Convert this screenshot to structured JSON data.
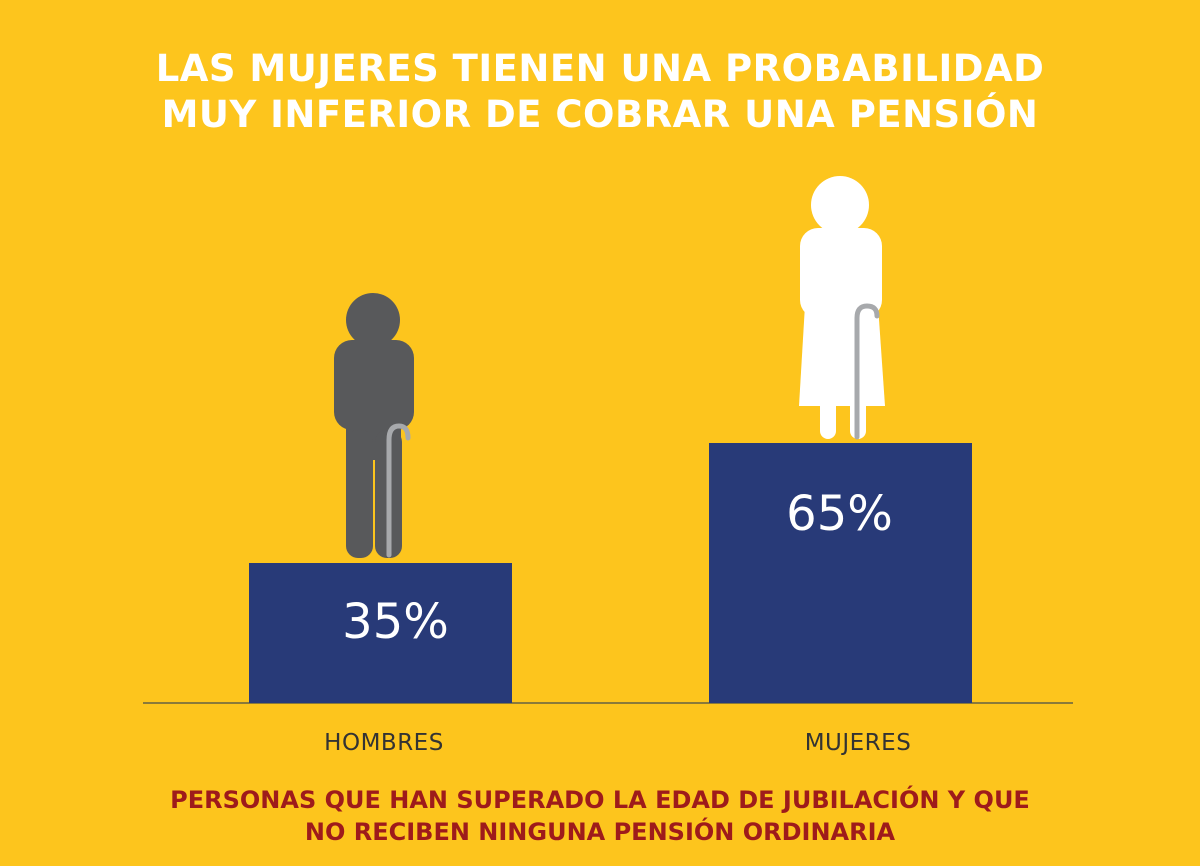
{
  "chart_data": {
    "type": "bar",
    "title": "LAS MUJERES TIENEN UNA PROBABILIDAD MUY INFERIOR DE COBRAR UNA PENSIÓN",
    "title_lines": [
      "LAS MUJERES TIENEN UNA PROBABILIDAD",
      "MUY INFERIOR DE COBRAR UNA PENSIÓN"
    ],
    "categories": [
      "HOMBRES",
      "MUJERES"
    ],
    "values": [
      35,
      65
    ],
    "value_labels": [
      "35%",
      "65%"
    ],
    "unit": "%",
    "caption_lines": [
      "PERSONAS QUE HAN SUPERADO LA EDAD DE JUBILACIÓN Y QUE",
      "NO RECIBEN NINGUNA PENSIÓN ORDINARIA"
    ],
    "icons": [
      "elderly-man-with-cane-icon",
      "elderly-woman-with-cane-icon"
    ],
    "grid": false,
    "colors": {
      "background": "#fdc51d",
      "bar": "#283a78",
      "man": "#58595b",
      "woman": "#ffffff",
      "cane": "#a7a9ac",
      "caption": "#9e1b1b",
      "title": "#ffffff"
    }
  }
}
